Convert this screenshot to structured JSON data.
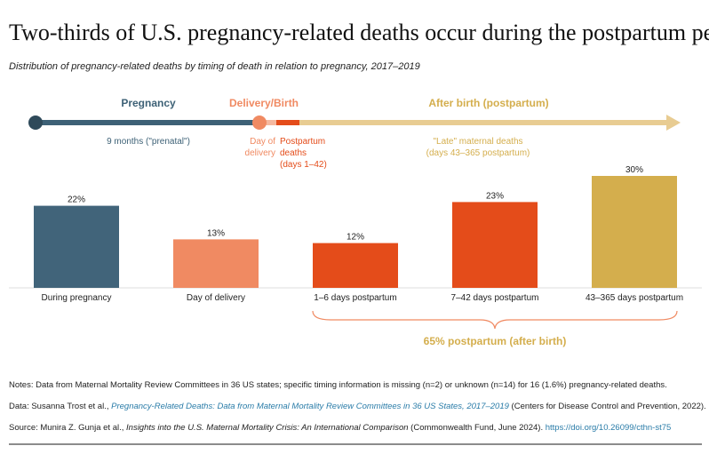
{
  "title": "Two-thirds of U.S. pregnancy-related deaths occur during the postpartum period.",
  "subtitle": "Distribution of pregnancy-related deaths by timing of death in relation to pregnancy, 2017–2019",
  "timeline": {
    "pregnancy": "Pregnancy",
    "delivery": "Delivery/Birth",
    "after": "After birth (postpartum)",
    "prenatal": "9 months (\"prenatal\")",
    "day_of_1": "Day of",
    "day_of_2": "delivery",
    "pp_1": "Postpartum",
    "pp_2": "deaths",
    "pp_3": "(days 1–42)",
    "late_1": "\"Late\" maternal deaths",
    "late_2": "(days 43–365 postpartum)"
  },
  "chart_data": {
    "type": "bar",
    "categories": [
      "During pregnancy",
      "Day of delivery",
      "1–6 days postpartum",
      "7–42 days postpartum",
      "43–365 days postpartum"
    ],
    "values": [
      22,
      13,
      12,
      23,
      30
    ],
    "labels": [
      "22%",
      "13%",
      "12%",
      "23%",
      "30%"
    ],
    "colors": [
      "#41647a",
      "#f08a62",
      "#e44c1a",
      "#e44c1a",
      "#d4ae4d"
    ],
    "annotation": "65% postpartum (after birth)"
  },
  "colors": {
    "pregnancy": "#3d6176",
    "delivery": "#f08a62",
    "postpartum": "#e44c1a",
    "late": "#d4ae4d",
    "late_light": "#e8cc92"
  },
  "notes": {
    "notes": "Notes: Data from Maternal Mortality Review Committees in 36 US states; specific timing information is missing (n=2) or unknown (n=14) for 16 (1.6%) pregnancy-related deaths.",
    "data_pre": "Data: Susanna Trost et al., ",
    "data_link": "Pregnancy-Related Deaths: Data from Maternal Mortality Review Committees in 36 US States, 2017–2019",
    "data_post": " (Centers for Disease Control and Prevention, 2022).",
    "source_pre": "Source: Munira Z. Gunja et al., ",
    "source_title": "Insights into the U.S. Maternal Mortality Crisis: An International Comparison",
    "source_post": " (Commonwealth Fund, June 2024). ",
    "source_link": "https://doi.org/10.26099/cthn-st75"
  }
}
